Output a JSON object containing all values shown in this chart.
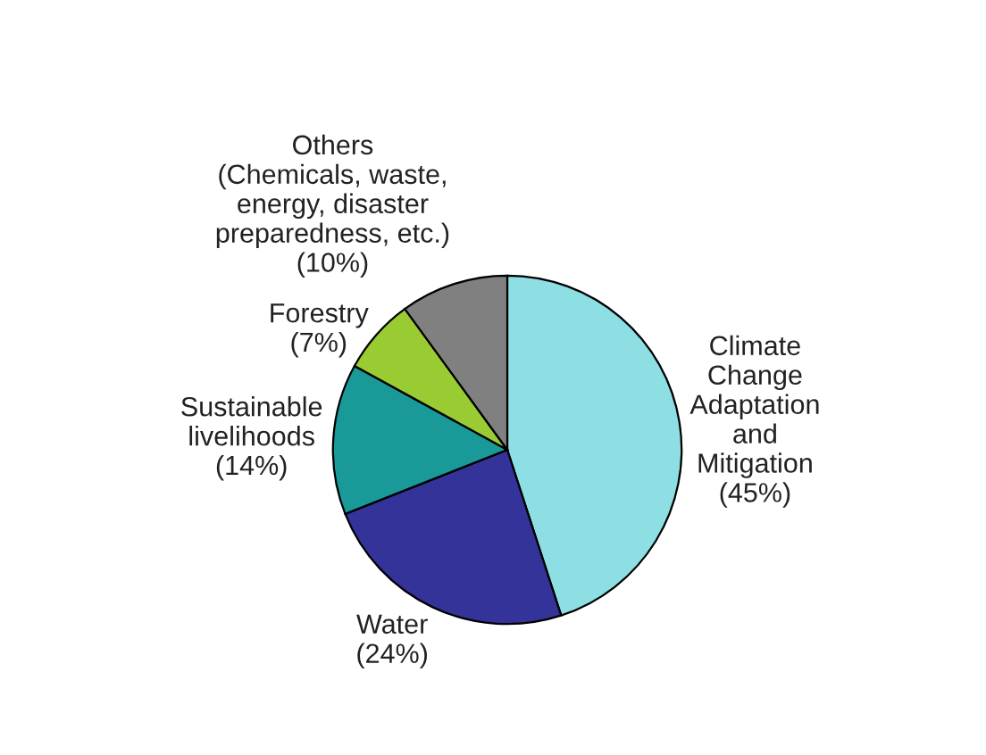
{
  "chart_data": {
    "type": "pie",
    "categories": [
      "Climate\nChange\nAdaptation\nand\nMitigation",
      "Water",
      "Sustainable\nlivelihoods",
      "Forestry",
      "Others\n(Chemicals, waste,\nenergy, disaster\npreparedness, etc.)"
    ],
    "values": [
      45,
      24,
      14,
      7,
      10
    ],
    "value_labels": [
      "(45%)",
      "(24%)",
      "(14%)",
      "(7%)",
      "(10%)"
    ],
    "colors": [
      "#8ddfe3",
      "#333399",
      "#1a9999",
      "#99cc33",
      "#808080"
    ],
    "legend": false
  }
}
